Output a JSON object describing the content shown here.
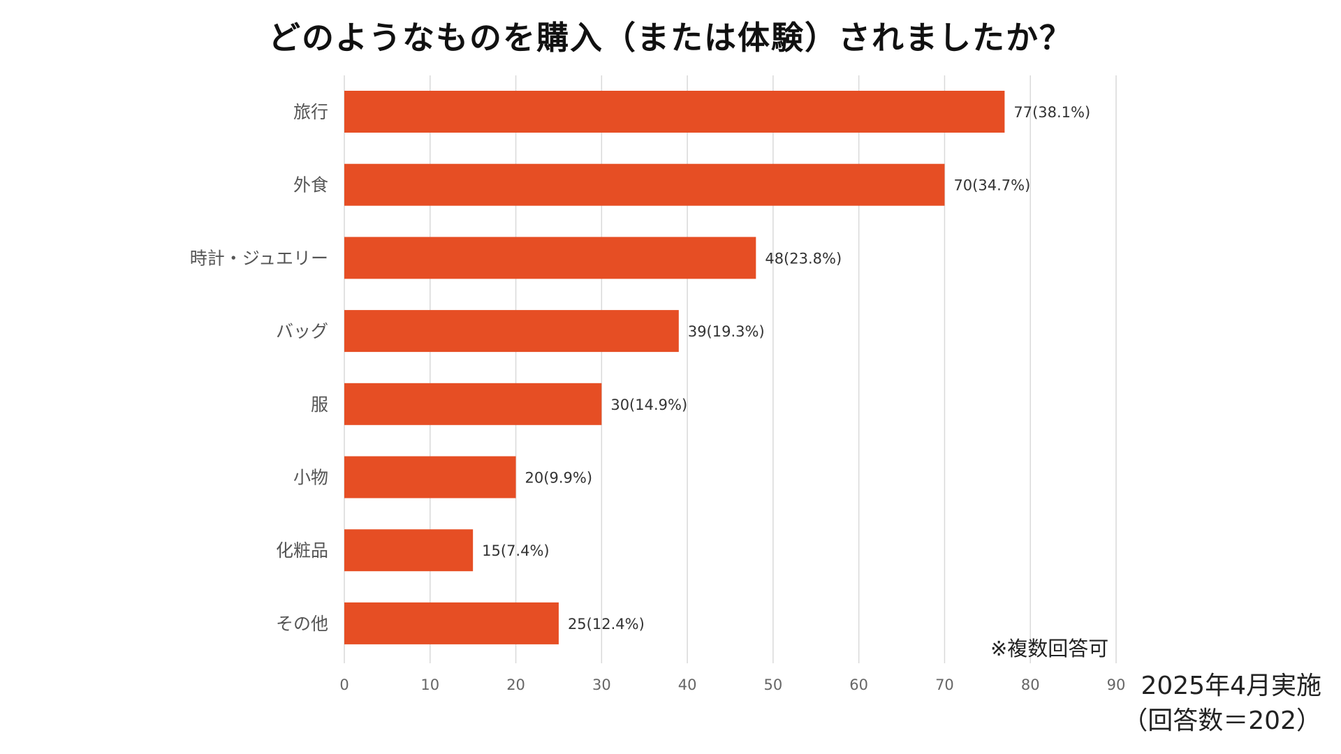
{
  "chart_data": {
    "type": "bar",
    "orientation": "horizontal",
    "title": "どのようなものを購入（または体験）されましたか？",
    "categories": [
      "旅行",
      "外食",
      "時計・ジュエリー",
      "バッグ",
      "服",
      "小物",
      "化粧品",
      "その他"
    ],
    "values": [
      77,
      70,
      48,
      39,
      30,
      20,
      15,
      25
    ],
    "data_labels": [
      "77(38.1%)",
      "70(34.7%)",
      "48(23.8%)",
      "39(19.3%)",
      "30(14.9%)",
      "20(9.9%)",
      "15(7.4%)",
      "25(12.4%)"
    ],
    "xlim": [
      0,
      90
    ],
    "xticks": [
      0,
      10,
      20,
      30,
      40,
      50,
      60,
      70,
      80,
      90
    ],
    "xlabel": "",
    "ylabel": "",
    "grid": "vertical",
    "bar_color": "#E64E24",
    "grid_color": "#D9D9D9"
  },
  "annotations": {
    "note": "※複数回答可",
    "survey_date": "2025年4月実施",
    "respondents": "（回答数＝202）"
  }
}
